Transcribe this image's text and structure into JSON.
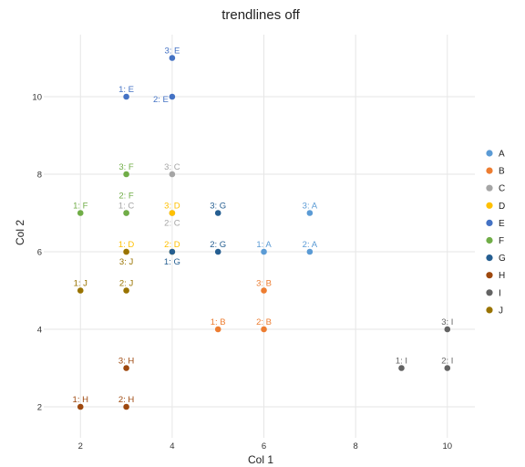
{
  "chart_data": {
    "type": "scatter",
    "title": "trendlines off",
    "xlabel": "Col 1",
    "ylabel": "Col 2",
    "xlim": [
      1.2,
      10.6
    ],
    "ylim": [
      1.2,
      11.6
    ],
    "xticks": [
      2,
      4,
      6,
      8,
      10
    ],
    "yticks": [
      2,
      4,
      6,
      8,
      10
    ],
    "grid": true,
    "legend_position": "right",
    "series": [
      {
        "name": "A",
        "color": "#5b9bd5",
        "points": [
          {
            "x": 6,
            "y": 6,
            "label": "1: A",
            "pos": "above"
          },
          {
            "x": 7,
            "y": 6,
            "label": "2: A",
            "pos": "above"
          },
          {
            "x": 7,
            "y": 7,
            "label": "3: A",
            "pos": "above"
          }
        ]
      },
      {
        "name": "B",
        "color": "#ed7d31",
        "points": [
          {
            "x": 5,
            "y": 4,
            "label": "1: B",
            "pos": "above"
          },
          {
            "x": 6,
            "y": 4,
            "label": "2: B",
            "pos": "above"
          },
          {
            "x": 6,
            "y": 5,
            "label": "3: B",
            "pos": "above"
          }
        ]
      },
      {
        "name": "C",
        "color": "#a5a5a5",
        "points": [
          {
            "x": 3,
            "y": 7,
            "label": "1: C",
            "pos": "above"
          },
          {
            "x": 4,
            "y": 7,
            "label": "2: C",
            "pos": "below"
          },
          {
            "x": 4,
            "y": 8,
            "label": "3: C",
            "pos": "above"
          }
        ]
      },
      {
        "name": "D",
        "color": "#ffc000",
        "points": [
          {
            "x": 3,
            "y": 6,
            "label": "1: D",
            "pos": "above"
          },
          {
            "x": 4,
            "y": 6,
            "label": "2: D",
            "pos": "above"
          },
          {
            "x": 4,
            "y": 7,
            "label": "3: D",
            "pos": "above"
          }
        ]
      },
      {
        "name": "E",
        "color": "#4472c4",
        "points": [
          {
            "x": 3,
            "y": 10,
            "label": "1: E",
            "pos": "above"
          },
          {
            "x": 4,
            "y": 10,
            "label": "2: E",
            "pos": "left"
          },
          {
            "x": 4,
            "y": 11,
            "label": "3: E",
            "pos": "above"
          }
        ]
      },
      {
        "name": "F",
        "color": "#70ad47",
        "points": [
          {
            "x": 2,
            "y": 7,
            "label": "1: F",
            "pos": "above"
          },
          {
            "x": 3,
            "y": 7,
            "label": "2: F",
            "pos": "above2"
          },
          {
            "x": 3,
            "y": 8,
            "label": "3: F",
            "pos": "above"
          }
        ]
      },
      {
        "name": "G",
        "color": "#255e91",
        "points": [
          {
            "x": 4,
            "y": 6,
            "label": "1: G",
            "pos": "below"
          },
          {
            "x": 5,
            "y": 6,
            "label": "2: G",
            "pos": "above"
          },
          {
            "x": 5,
            "y": 7,
            "label": "3: G",
            "pos": "above"
          }
        ]
      },
      {
        "name": "H",
        "color": "#9e480e",
        "points": [
          {
            "x": 2,
            "y": 2,
            "label": "1: H",
            "pos": "above"
          },
          {
            "x": 3,
            "y": 2,
            "label": "2: H",
            "pos": "above"
          },
          {
            "x": 3,
            "y": 3,
            "label": "3: H",
            "pos": "above"
          }
        ]
      },
      {
        "name": "I",
        "color": "#636363",
        "points": [
          {
            "x": 9,
            "y": 3,
            "label": "1: I",
            "pos": "above"
          },
          {
            "x": 10,
            "y": 3,
            "label": "2: I",
            "pos": "above"
          },
          {
            "x": 10,
            "y": 4,
            "label": "3: I",
            "pos": "above"
          }
        ]
      },
      {
        "name": "J",
        "color": "#997300",
        "points": [
          {
            "x": 2,
            "y": 5,
            "label": "1: J",
            "pos": "above"
          },
          {
            "x": 3,
            "y": 5,
            "label": "2: J",
            "pos": "above"
          },
          {
            "x": 3,
            "y": 6,
            "label": "3: J",
            "pos": "below"
          }
        ]
      }
    ]
  }
}
